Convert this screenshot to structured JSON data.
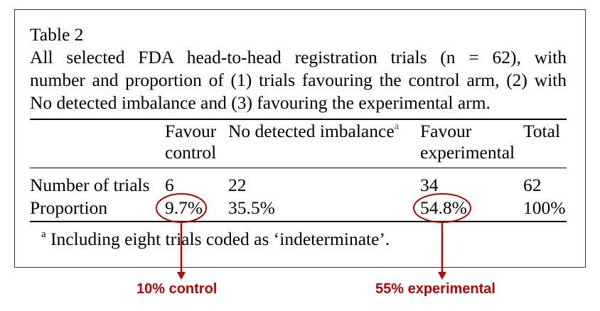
{
  "table": {
    "label": "Table 2",
    "caption_lines": [
      "All selected FDA head-to-head registration trials (n = 62), with",
      "number and proportion of (1) trials favouring the control arm, (2) with",
      "No detected imbalance and (3) favouring the experimental arm."
    ],
    "headers": {
      "favour_control": [
        "Favour",
        "control"
      ],
      "no_imbalance": "No detected imbalance",
      "no_imbalance_sup": "a",
      "favour_experimental": [
        "Favour",
        "experimental"
      ],
      "total": "Total"
    },
    "rows": [
      {
        "label": "Number of trials",
        "control": "6",
        "none": "22",
        "experimental": "34",
        "total": "62"
      },
      {
        "label": "Proportion",
        "control": "9.7%",
        "none": "35.5%",
        "experimental": "54.8%",
        "total": "100%"
      }
    ],
    "footnote_mark": "a",
    "footnote": "Including eight trials coded as ‘indeterminate’."
  },
  "annotations": {
    "color": "#c00000",
    "control_label": "10% control",
    "experimental_label": "55% experimental"
  }
}
